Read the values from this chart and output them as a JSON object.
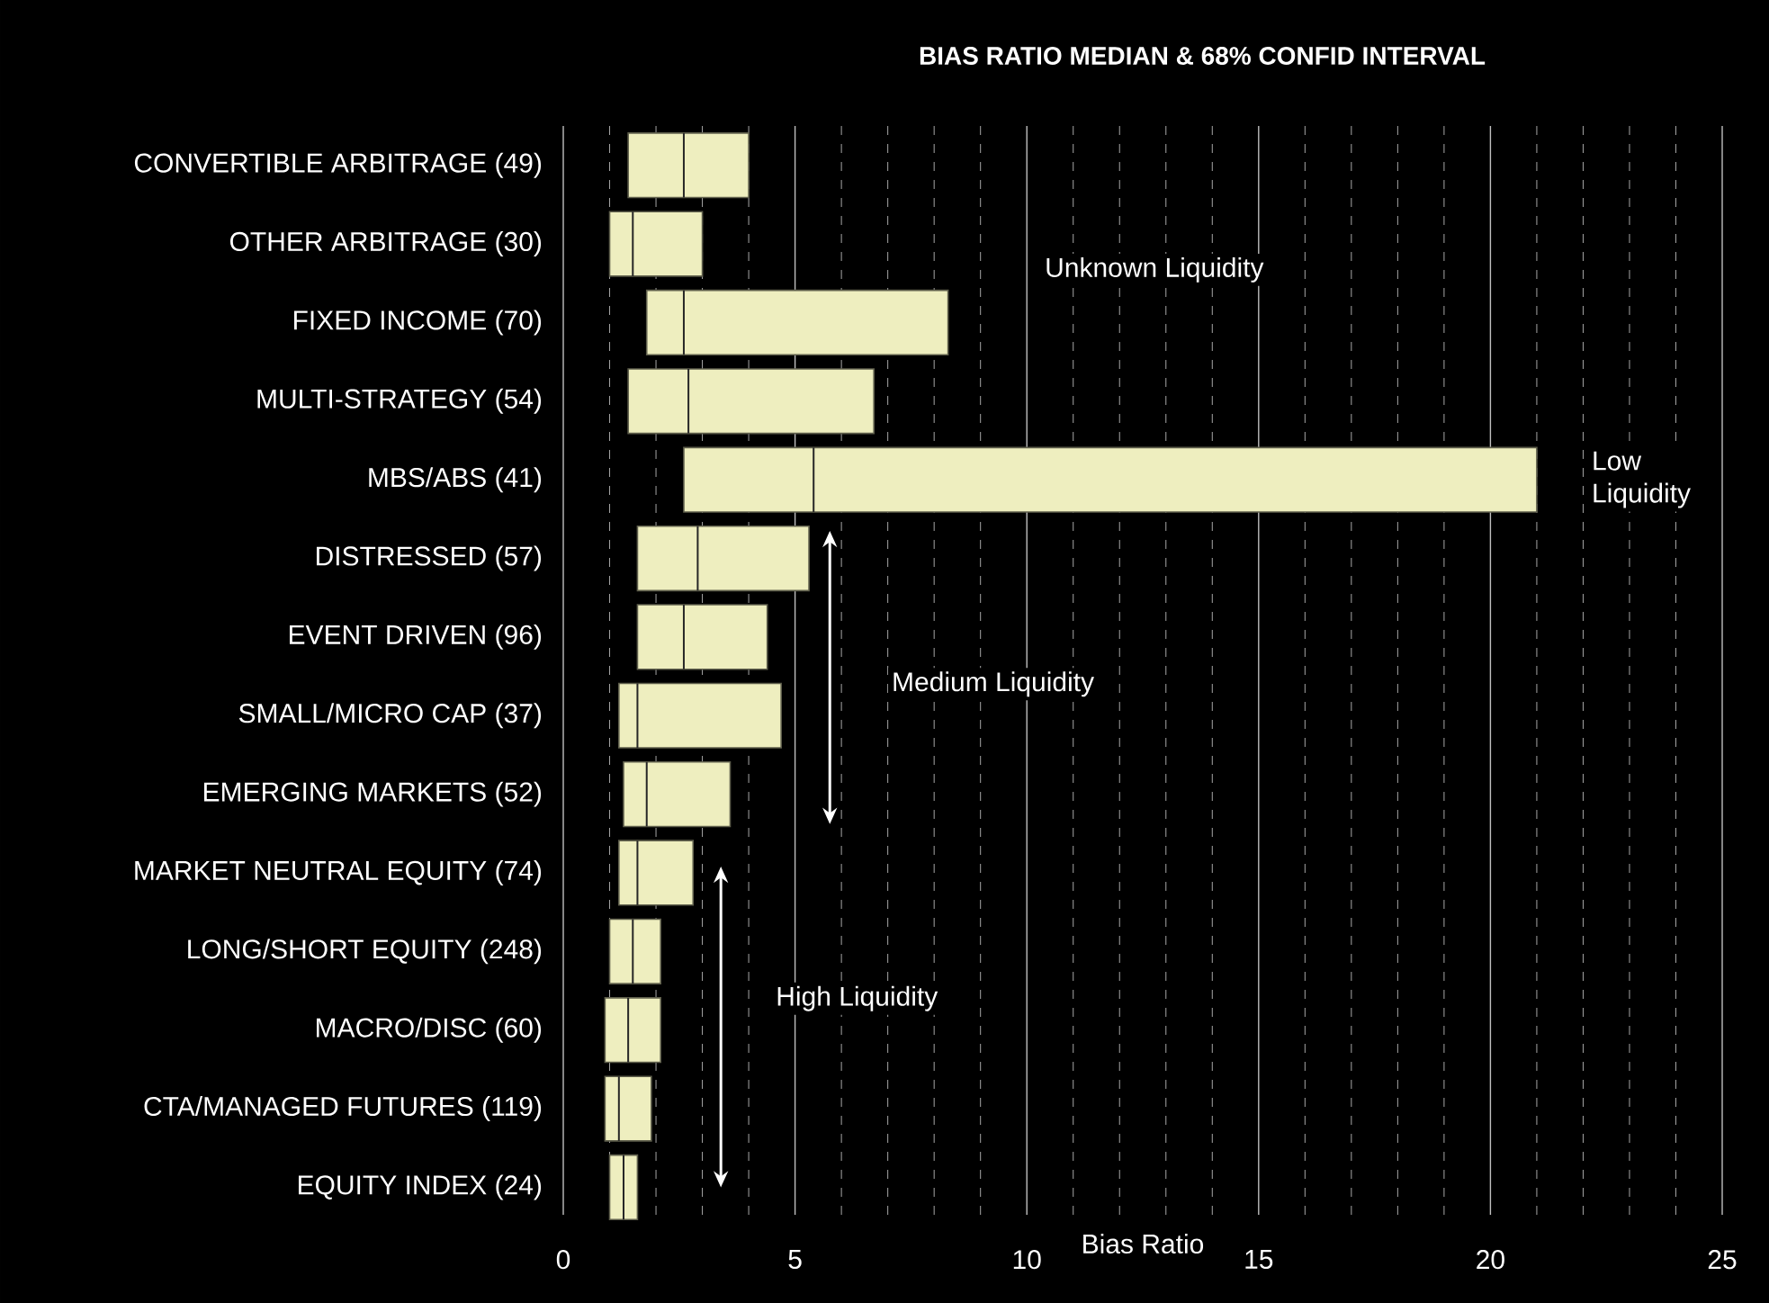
{
  "chart_data": {
    "type": "box",
    "orientation": "horizontal",
    "title": "BIAS RATIO MEDIAN & 68% CONFID INTERVAL",
    "xlabel": "Bias Ratio",
    "categories": [
      "CONVERTIBLE ARBITRAGE (49)",
      "OTHER ARBITRAGE (30)",
      "FIXED INCOME (70)",
      "MULTI-STRATEGY (54)",
      "MBS/ABS (41)",
      "DISTRESSED (57)",
      "EVENT DRIVEN (96)",
      "SMALL/MICRO CAP (37)",
      "EMERGING MARKETS (52)",
      "MARKET NEUTRAL EQUITY (74)",
      "LONG/SHORT EQUITY (248)",
      "MACRO/DISC (60)",
      "CTA/MANAGED FUTURES (119)",
      "EQUITY INDEX (24)"
    ],
    "boxes": [
      {
        "low": 1.4,
        "q1": 1.4,
        "median": 2.6,
        "q3": 4.0,
        "high": 4.0
      },
      {
        "low": 1.0,
        "q1": 1.0,
        "median": 1.5,
        "q3": 3.0,
        "high": 3.0
      },
      {
        "low": 1.8,
        "q1": 1.8,
        "median": 2.6,
        "q3": 8.3,
        "high": 8.3
      },
      {
        "low": 1.4,
        "q1": 1.4,
        "median": 2.7,
        "q3": 6.7,
        "high": 6.7
      },
      {
        "low": 2.6,
        "q1": 2.6,
        "median": 5.4,
        "q3": 21.0,
        "high": 21.0
      },
      {
        "low": 1.6,
        "q1": 1.6,
        "median": 2.9,
        "q3": 5.3,
        "high": 5.3
      },
      {
        "low": 1.6,
        "q1": 1.6,
        "median": 2.6,
        "q3": 4.4,
        "high": 4.4
      },
      {
        "low": 1.2,
        "q1": 1.2,
        "median": 1.6,
        "q3": 4.7,
        "high": 4.7
      },
      {
        "low": 1.3,
        "q1": 1.3,
        "median": 1.8,
        "q3": 3.6,
        "high": 3.6
      },
      {
        "low": 1.2,
        "q1": 1.2,
        "median": 1.6,
        "q3": 2.8,
        "high": 2.8
      },
      {
        "low": 1.0,
        "q1": 1.0,
        "median": 1.5,
        "q3": 2.1,
        "high": 2.1
      },
      {
        "low": 0.9,
        "q1": 0.9,
        "median": 1.4,
        "q3": 2.1,
        "high": 2.1
      },
      {
        "low": 0.9,
        "q1": 0.9,
        "median": 1.2,
        "q3": 1.9,
        "high": 1.9
      },
      {
        "low": 1.0,
        "q1": 1.0,
        "median": 1.3,
        "q3": 1.6,
        "high": 1.6
      }
    ],
    "color": "#eeeebf",
    "xlim": [
      0,
      25
    ],
    "xticks": [
      0,
      5,
      10,
      15,
      20,
      25
    ],
    "grid": "x",
    "annotations": [
      "Unknown Liquidity",
      "Low Liquidity",
      "Medium Liquidity",
      "High Liquidity"
    ]
  }
}
